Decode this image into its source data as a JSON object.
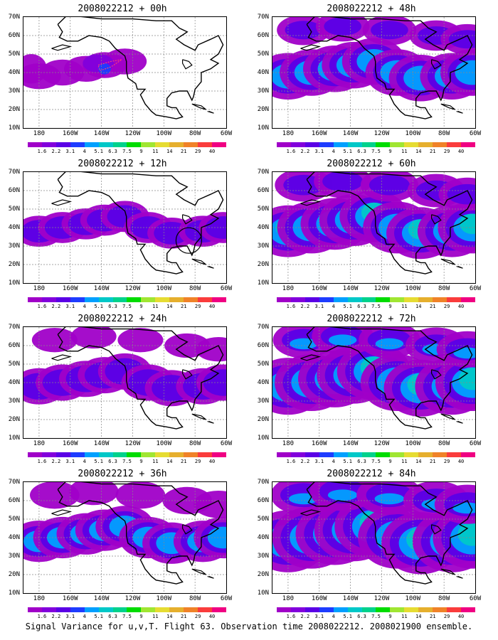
{
  "caption": "Signal Variance for u,v,T. Flight 63. Observation time 2008022212. 2008021900 ensemble.",
  "lat_labels": [
    "70N",
    "60N",
    "50N",
    "40N",
    "30N",
    "20N",
    "10N"
  ],
  "lon_labels": [
    "180",
    "160W",
    "140W",
    "120W",
    "100W",
    "80W",
    "60W"
  ],
  "colorbar": {
    "labels": [
      "1.6",
      "2.2",
      "3.1",
      "4",
      "5.1",
      "6.3",
      "7.5",
      "9",
      "11",
      "14",
      "21",
      "29",
      "40"
    ],
    "colors": [
      "#a000c8",
      "#8200dc",
      "#5a00e6",
      "#1e3cff",
      "#00a0ff",
      "#00c8c8",
      "#00d28c",
      "#00dc00",
      "#a0e632",
      "#e6dc32",
      "#e6af2d",
      "#f08228",
      "#fa3c3c",
      "#f00082"
    ]
  },
  "panels": [
    {
      "title": "2008022212 + 00h",
      "intensity": 0
    },
    {
      "title": "2008022212 + 48h",
      "intensity": 4
    },
    {
      "title": "2008022212 + 12h",
      "intensity": 1
    },
    {
      "title": "2008022212 + 60h",
      "intensity": 5
    },
    {
      "title": "2008022212 + 24h",
      "intensity": 2
    },
    {
      "title": "2008022212 + 72h",
      "intensity": 6
    },
    {
      "title": "2008022212 + 36h",
      "intensity": 3
    },
    {
      "title": "2008022212 + 84h",
      "intensity": 7
    }
  ]
}
